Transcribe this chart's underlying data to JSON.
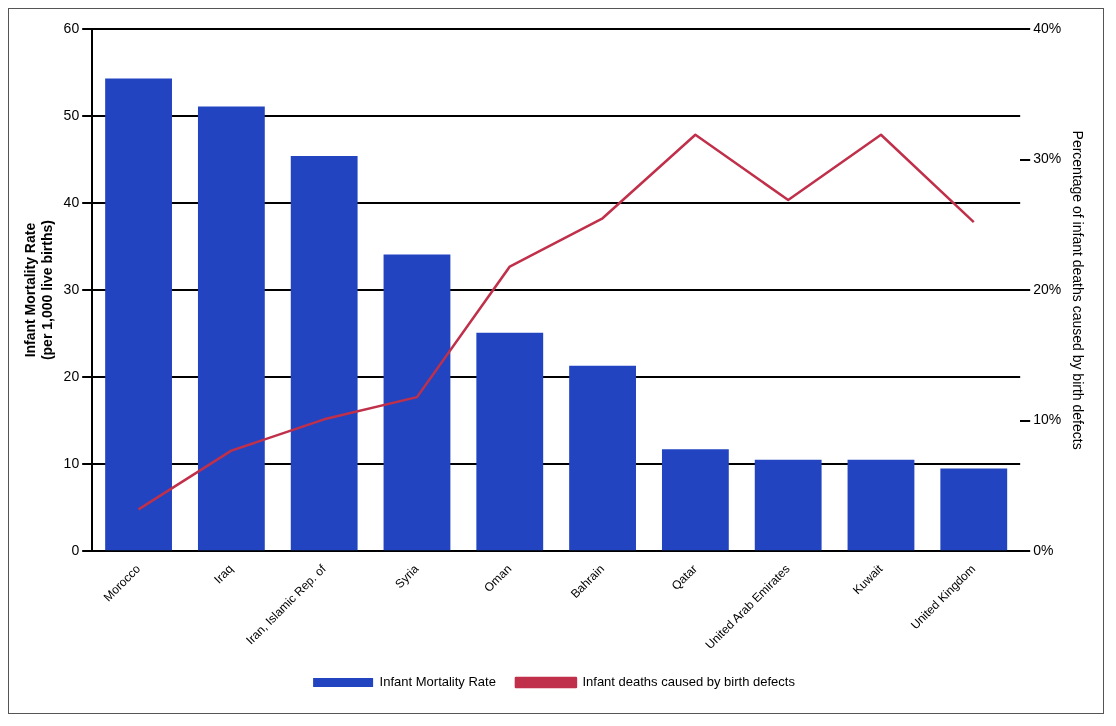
{
  "chart_data": {
    "type": "bar",
    "categories": [
      "Morocco",
      "Iraq",
      "Iran, Islamic Rep. of",
      "Syria",
      "Oman",
      "Bahrain",
      "Qatar",
      "United Arab Emirates",
      "Kuwait",
      "United Kingdom"
    ],
    "series": [
      {
        "name": "Infant Mortality Rate",
        "color": "#2244c0",
        "values": [
          54.3,
          51.1,
          45.4,
          34.1,
          25.1,
          21.3,
          11.7,
          10.5,
          10.5,
          9.5
        ]
      },
      {
        "name": "Infant deaths caused by birth defects",
        "type": "line",
        "axis": "y2",
        "color": "#c0304a",
        "values": [
          3.2,
          7.7,
          10.1,
          11.8,
          21.8,
          25.5,
          31.9,
          26.9,
          31.9,
          25.2
        ]
      }
    ],
    "ylabel": "Infant Mortality Rate\n(per 1,000 live births)",
    "y2label": "Percentage of infant deaths caused by birth defects",
    "ylim": [
      0,
      60
    ],
    "yticks": [
      0,
      10,
      20,
      30,
      40,
      50,
      60
    ],
    "y2lim": [
      0,
      40
    ],
    "y2ticks": [
      {
        "value": 0,
        "label": "0%"
      },
      {
        "value": 10,
        "label": "10%"
      },
      {
        "value": 20,
        "label": "20%"
      },
      {
        "value": 30,
        "label": "30%"
      },
      {
        "value": 40,
        "label": "40%"
      }
    ],
    "grid": "y",
    "legend": "bottom",
    "marker": "none"
  }
}
